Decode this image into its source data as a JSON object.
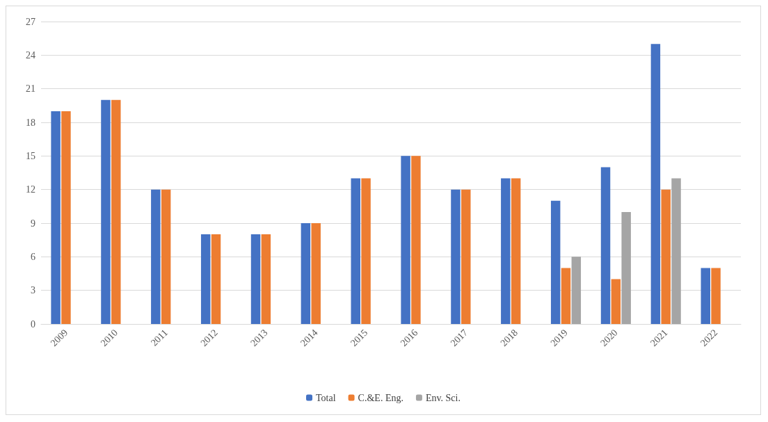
{
  "chart_data": {
    "type": "bar",
    "categories": [
      "2009",
      "2010",
      "2011",
      "2012",
      "2013",
      "2014",
      "2015",
      "2016",
      "2017",
      "2018",
      "2019",
      "2020",
      "2021",
      "2022"
    ],
    "series": [
      {
        "name": "Total",
        "color": "#4472c4",
        "values": [
          19,
          20,
          12,
          8,
          8,
          9,
          13,
          15,
          12,
          13,
          11,
          14,
          25,
          5
        ]
      },
      {
        "name": "C.&E. Eng.",
        "color": "#ed7d31",
        "values": [
          19,
          20,
          12,
          8,
          8,
          9,
          13,
          15,
          12,
          13,
          5,
          4,
          12,
          5
        ]
      },
      {
        "name": "Env. Sci.",
        "color": "#a5a5a5",
        "values": [
          null,
          null,
          null,
          null,
          null,
          null,
          null,
          null,
          null,
          null,
          6,
          10,
          13,
          null
        ]
      }
    ],
    "ylim": [
      0,
      27
    ],
    "yticks": [
      0,
      3,
      6,
      9,
      12,
      15,
      18,
      21,
      24,
      27
    ],
    "grid": "y",
    "legend": "bottom"
  }
}
